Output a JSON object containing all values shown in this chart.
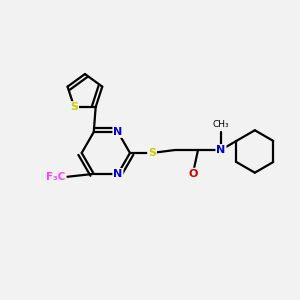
{
  "bg_color": "#f2f2f2",
  "bond_color": "#000000",
  "S_color": "#cccc00",
  "N_color": "#0000cc",
  "O_color": "#cc0000",
  "F_color": "#ff44ff",
  "lw": 1.6,
  "xlim": [
    0,
    10
  ],
  "ylim": [
    0,
    10
  ]
}
